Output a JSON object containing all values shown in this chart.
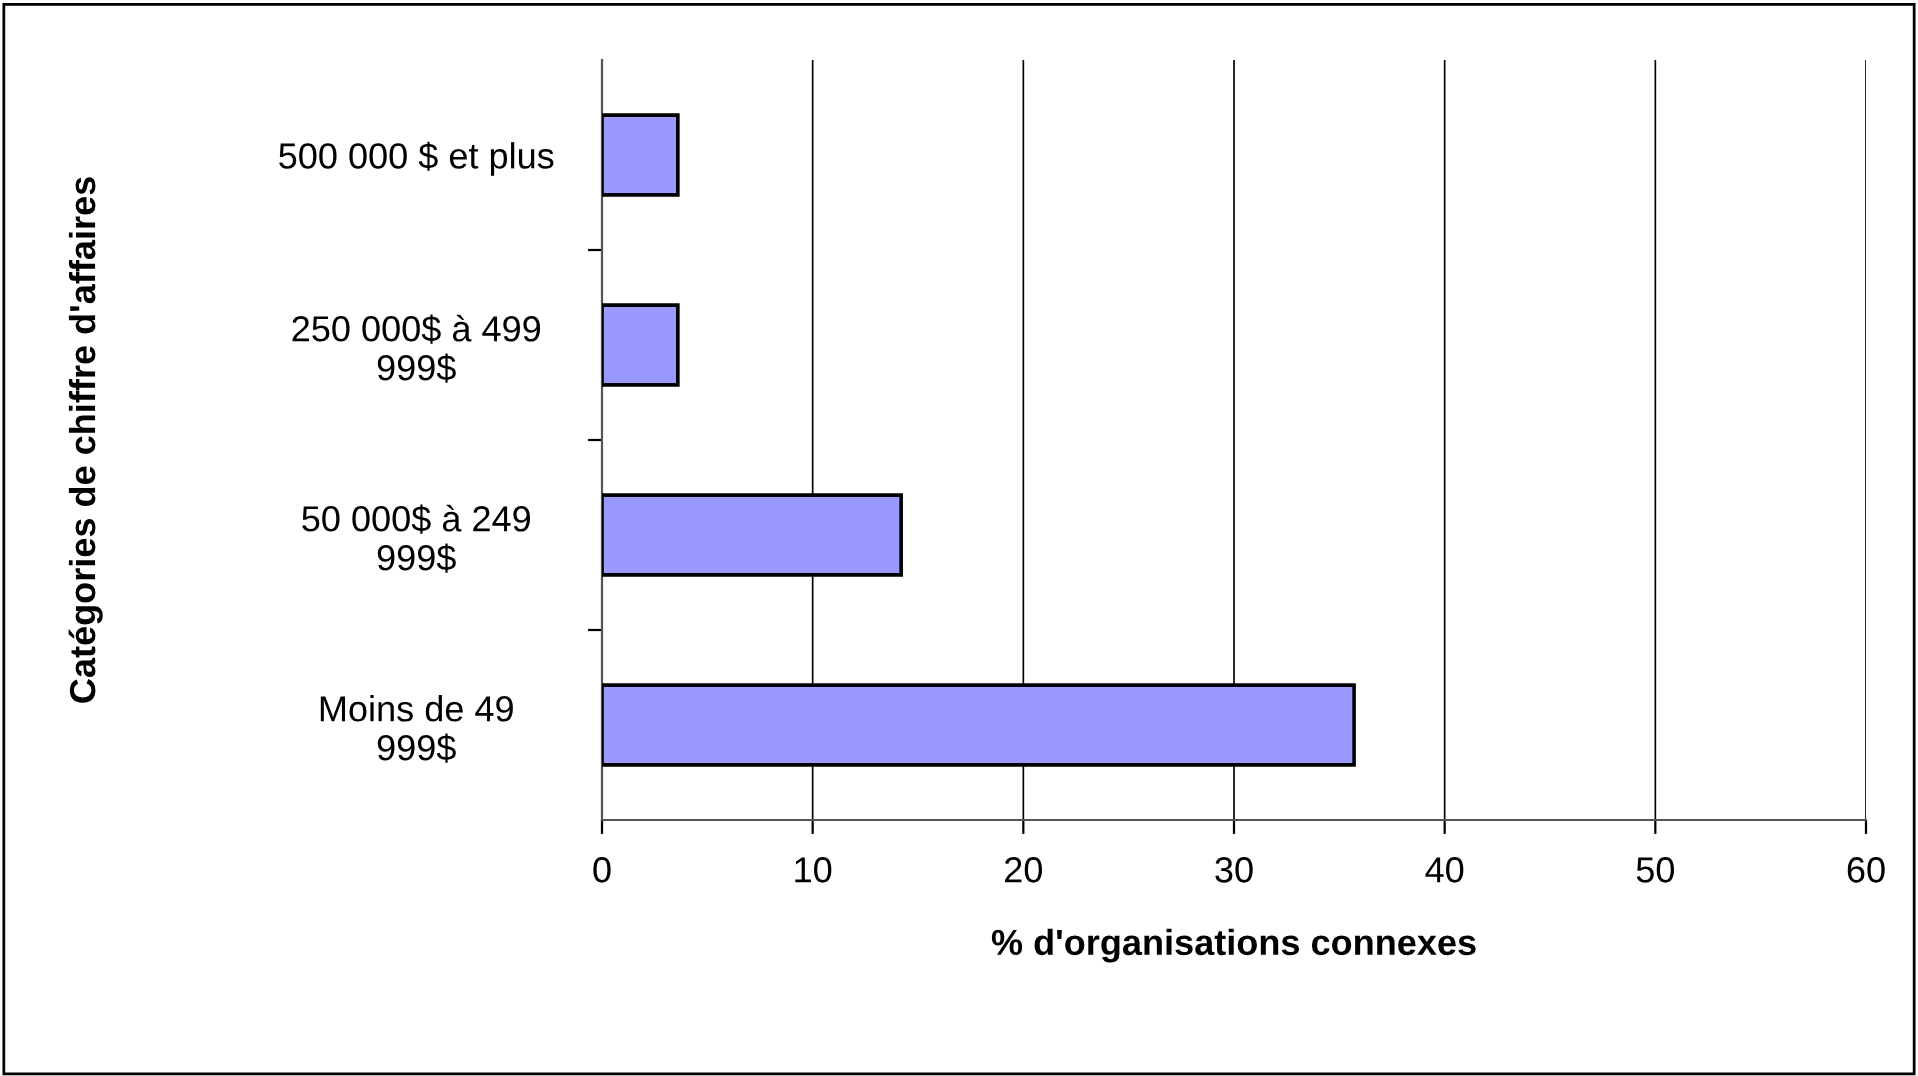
{
  "chart_data": {
    "type": "bar",
    "orientation": "horizontal",
    "categories": [
      "500 000 $ et plus",
      "250 000$ à 499\n999$",
      "50 000$ à 249\n999$",
      "Moins de 49\n999$"
    ],
    "values": [
      3.6,
      3.6,
      14.2,
      35.7
    ],
    "color": "#9999ff",
    "xlim": [
      0,
      60
    ],
    "xticks": [
      0,
      10,
      20,
      30,
      40,
      50,
      60
    ],
    "grid": "x",
    "xlabel": "% d'organisations connexes",
    "ylabel": "Catégories de chiffre d'affaires"
  }
}
